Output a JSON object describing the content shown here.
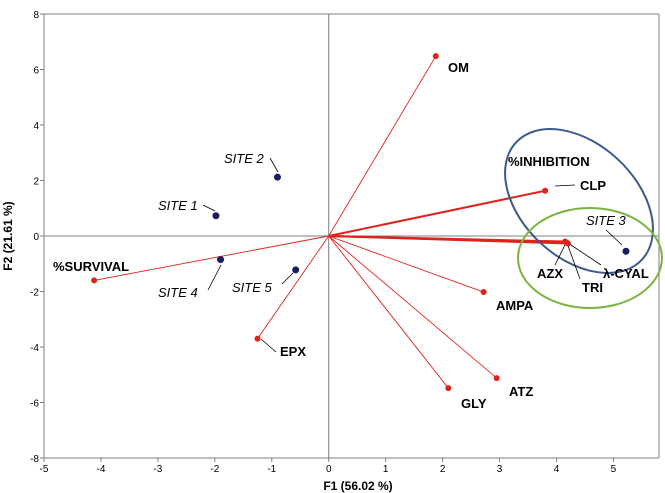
{
  "chart_data": {
    "type": "scatter",
    "xlabel": "F1 (56.02 %)",
    "ylabel": "F2 (21.61 %)",
    "xlim": [
      -5,
      5.8
    ],
    "ylim": [
      -8,
      8
    ],
    "xticks": [
      "-5",
      "-4",
      "-3",
      "-2",
      "-1",
      "0",
      "1",
      "2",
      "3",
      "4",
      "5"
    ],
    "yticks": [
      "-8",
      "-6",
      "-4",
      "-2",
      "0",
      "2",
      "4",
      "6",
      "8"
    ],
    "grid": false,
    "colors": {
      "variables": "#e0221d",
      "observations": "#1b1c5e",
      "ellipse_blue": "#3d5a8c",
      "ellipse_green": "#7cb342"
    },
    "variables": [
      {
        "label": "OM",
        "x": 1.88,
        "y": 6.48
      },
      {
        "label": "%INHIBITION",
        "x": 3.8,
        "y": 1.63
      },
      {
        "label": "CLP",
        "x": 3.8,
        "y": 1.63
      },
      {
        "label": "AZX",
        "x": 4.15,
        "y": -0.2
      },
      {
        "label": "λ-CYAL",
        "x": 4.2,
        "y": -0.27
      },
      {
        "label": "TRI",
        "x": 4.18,
        "y": -0.24
      },
      {
        "label": "%SURVIVAL",
        "x": -4.12,
        "y": -1.6
      },
      {
        "label": "AMPA",
        "x": 2.72,
        "y": -2.02
      },
      {
        "label": "EPX",
        "x": -1.25,
        "y": -3.7
      },
      {
        "label": "ATZ",
        "x": 2.95,
        "y": -5.12
      },
      {
        "label": "GLY",
        "x": 2.1,
        "y": -5.48
      }
    ],
    "observations": [
      {
        "label": "SITE 1",
        "x": -1.98,
        "y": 0.73
      },
      {
        "label": "SITE 2",
        "x": -0.9,
        "y": 2.12
      },
      {
        "label": "SITE 3",
        "x": 5.22,
        "y": -0.55
      },
      {
        "label": "SITE 4",
        "x": -1.9,
        "y": -0.85
      },
      {
        "label": "SITE 5",
        "x": -0.58,
        "y": -1.22
      }
    ]
  }
}
